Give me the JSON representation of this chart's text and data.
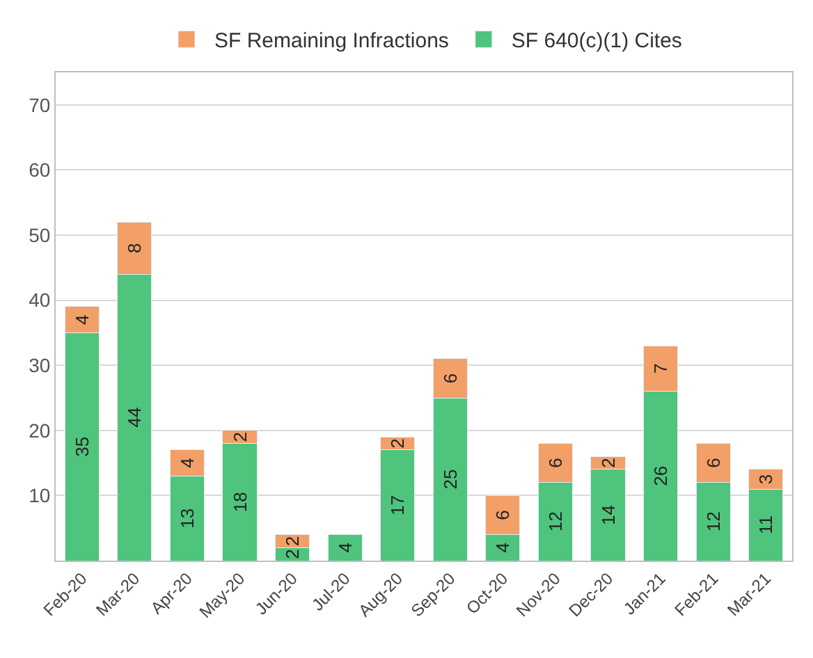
{
  "chart_data": {
    "type": "bar",
    "stacked": true,
    "data_labels": true,
    "legend": "top",
    "grid": "y",
    "categories": [
      "Feb-20",
      "Mar-20",
      "Apr-20",
      "May-20",
      "Jun-20",
      "Jul-20",
      "Aug-20",
      "Sep-20",
      "Oct-20",
      "Nov-20",
      "Dec-20",
      "Jan-21",
      "Feb-21",
      "Mar-21"
    ],
    "series": [
      {
        "name": "SF 640(c)(1) Cites",
        "color": "#4fc47c",
        "values": [
          35,
          44,
          13,
          18,
          2,
          4,
          17,
          25,
          4,
          12,
          14,
          26,
          12,
          11
        ]
      },
      {
        "name": "SF Remaining Infractions",
        "color": "#f2a068",
        "values": [
          4,
          8,
          4,
          2,
          2,
          null,
          2,
          6,
          6,
          6,
          2,
          7,
          6,
          3
        ]
      }
    ],
    "ylim": [
      0,
      75
    ],
    "yticks": [
      {
        "value": 0,
        "label": null
      },
      10,
      20,
      30,
      40,
      50,
      60,
      70
    ]
  }
}
